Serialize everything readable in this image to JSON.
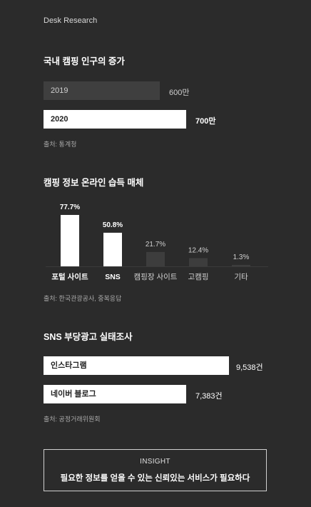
{
  "header": {
    "label": "Desk Research"
  },
  "section1": {
    "title": "국내 캠핑 인구의 증가",
    "rows": [
      {
        "year": "2019",
        "value_label": "600만",
        "value": 600
      },
      {
        "year": "2020",
        "value_label": "700만",
        "value": 700
      }
    ],
    "source": "출처: 통계청"
  },
  "section2": {
    "title": "캠핑 정보 온라인 습득 매체",
    "source": "출처: 한국관광공사, 중복응답"
  },
  "chart_data": {
    "type": "bar",
    "categories": [
      "포털 사이트",
      "SNS",
      "캠핑장 사이트",
      "고캠핑",
      "기타"
    ],
    "values": [
      77.7,
      50.8,
      21.7,
      12.4,
      1.3
    ],
    "value_labels": [
      "77.7%",
      "50.8%",
      "21.7%",
      "12.4%",
      "1.3%"
    ],
    "highlight": [
      true,
      true,
      false,
      false,
      false
    ],
    "colors": {
      "highlight": "#ffffff",
      "muted": "#3d3d3d"
    }
  },
  "section3": {
    "title": "SNS 부당광고 실태조사",
    "rows": [
      {
        "name": "인스타그램",
        "value_label": "9,538건",
        "value": 9538
      },
      {
        "name": "네이버 블로그",
        "value_label": "7,383건",
        "value": 7383
      }
    ],
    "source": "출처: 공정거래위원회"
  },
  "insight": {
    "label": "INSIGHT",
    "text": "필요한 정보를 얻을 수 있는 신뢰있는 서비스가 필요하다"
  }
}
